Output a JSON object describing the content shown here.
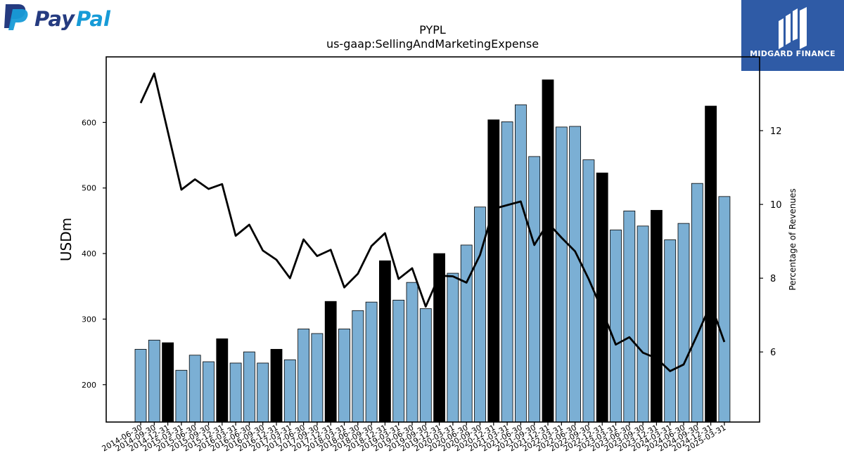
{
  "logos": {
    "left_text_pay": "Pay",
    "left_text_pal": "Pal",
    "right_text": "MIDGARD FINANCE"
  },
  "colors": {
    "bar_blue": "#7bafd4",
    "bar_black": "#000000",
    "line": "#000000",
    "paypal_dark": "#253b80",
    "paypal_light": "#179bd7",
    "midgard_bg": "#2f5ba6"
  },
  "chart_data": {
    "type": "bar",
    "title": "PYPL",
    "subtitle": "us-gaap:SellingAndMarketingExpense",
    "ylabel": "USDm",
    "y2label": "Percentage of Revenues",
    "ylim": [
      143,
      700
    ],
    "y2lim": [
      4.1,
      14.0
    ],
    "yticks": [
      200,
      300,
      400,
      500,
      600
    ],
    "y2ticks": [
      6,
      8,
      10,
      12
    ],
    "categories": [
      "2014-06-30",
      "2014-09-30",
      "2014-12-31",
      "2015-03-31",
      "2015-06-30",
      "2015-09-30",
      "2015-12-31",
      "2016-03-31",
      "2016-06-30",
      "2016-09-30",
      "2016-12-31",
      "2017-03-31",
      "2017-06-30",
      "2017-09-30",
      "2017-12-31",
      "2018-03-31",
      "2018-06-30",
      "2018-09-30",
      "2018-12-31",
      "2019-03-31",
      "2019-06-30",
      "2019-09-30",
      "2019-12-31",
      "2020-03-31",
      "2020-06-30",
      "2020-09-30",
      "2020-12-31",
      "2021-03-31",
      "2021-06-30",
      "2021-09-30",
      "2021-12-31",
      "2022-03-31",
      "2022-06-30",
      "2022-09-30",
      "2022-12-31",
      "2023-03-31",
      "2023-06-30",
      "2023-09-30",
      "2023-12-31",
      "2024-03-31",
      "2024-06-30",
      "2024-09-30",
      "2024-12-31",
      "2025-03-31"
    ],
    "series": [
      {
        "values": [
          254,
          268,
          264,
          222,
          245,
          235,
          270,
          233,
          250,
          233,
          254,
          238,
          285,
          278,
          327,
          285,
          313,
          326,
          389,
          329,
          356,
          316,
          400,
          370,
          413,
          471,
          604,
          601,
          627,
          548,
          665,
          593,
          594,
          543,
          523,
          436,
          465,
          442,
          466,
          421,
          446,
          507,
          625,
          487
        ],
        "q4_flags": [
          0,
          0,
          1,
          0,
          0,
          0,
          1,
          0,
          0,
          0,
          1,
          0,
          0,
          0,
          1,
          0,
          0,
          0,
          1,
          0,
          0,
          0,
          1,
          0,
          0,
          0,
          1,
          0,
          0,
          0,
          1,
          0,
          0,
          0,
          1,
          0,
          0,
          0,
          1,
          0,
          0,
          0,
          1,
          0
        ]
      },
      {
        "values": [
          12.75,
          13.55,
          null,
          10.4,
          10.68,
          10.42,
          10.55,
          9.15,
          9.45,
          8.75,
          8.5,
          8.0,
          9.05,
          8.6,
          8.77,
          7.75,
          8.12,
          8.87,
          9.22,
          7.98,
          8.27,
          7.23,
          8.07,
          8.05,
          7.88,
          8.63,
          9.88,
          9.98,
          10.08,
          8.9,
          9.5,
          9.1,
          8.73,
          7.98,
          7.13,
          6.2,
          6.4,
          5.98,
          5.83,
          5.48,
          5.66,
          6.46,
          7.3,
          6.27
        ]
      }
    ]
  }
}
